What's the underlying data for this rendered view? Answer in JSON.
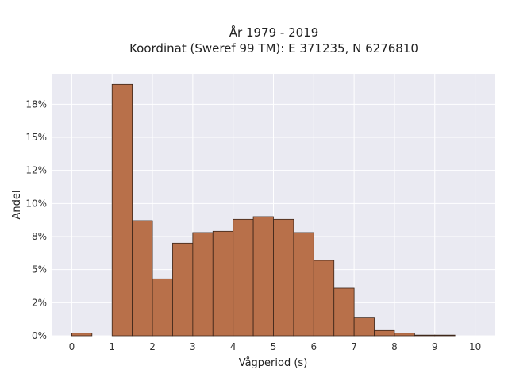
{
  "chart_data": {
    "type": "bar",
    "title": "År 1979 - 2019",
    "subtitle": "Koordinat (Sweref 99 TM): E 371235, N 6276810",
    "xlabel": "Vågperiod (s)",
    "ylabel": "Andel",
    "bin_edges": [
      0,
      0.5,
      1,
      1.5,
      2,
      2.5,
      3,
      3.5,
      4,
      4.5,
      5,
      5.5,
      6,
      6.5,
      7,
      7.5,
      8,
      8.5,
      9,
      9.5,
      10
    ],
    "values": [
      0.2,
      0,
      19.0,
      8.7,
      4.3,
      7.0,
      7.8,
      7.9,
      8.8,
      9.0,
      8.8,
      7.8,
      5.7,
      3.6,
      1.4,
      0.4,
      0.2,
      0.05,
      0.05,
      0
    ],
    "xlim": [
      -0.5,
      10.5
    ],
    "ylim": [
      0,
      19.8
    ],
    "xticks": [
      "0",
      "1",
      "2",
      "3",
      "4",
      "5",
      "6",
      "7",
      "8",
      "9",
      "10"
    ],
    "xtick_values": [
      0,
      1,
      2,
      3,
      4,
      5,
      6,
      7,
      8,
      9,
      10
    ],
    "yticks": [
      "0%",
      "2%",
      "5%",
      "8%",
      "10%",
      "12%",
      "15%",
      "18%"
    ],
    "ytick_values": [
      0,
      2.5,
      5,
      7.5,
      10,
      12.5,
      15,
      17.5
    ],
    "grid": true,
    "colors": {
      "bar_fill": "#b8704a",
      "bar_edge": "#3a2418",
      "plot_background": "#eaeaf2",
      "grid": "#ffffff"
    }
  }
}
